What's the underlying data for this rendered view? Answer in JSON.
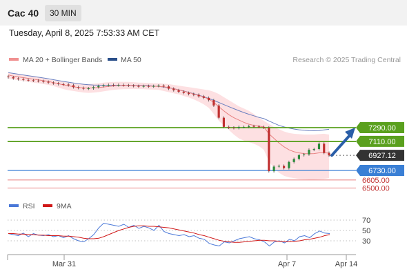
{
  "header": {
    "title": "Cac 40",
    "timeframe": "30 MIN",
    "timestamp": "Tuesday, April 8, 2025 7:53:33 AM CET"
  },
  "legend": {
    "ma20_label": "MA 20 + Bollinger Bands",
    "ma50_label": "MA 50",
    "credit": "Research © 2025 Trading Central",
    "rsi_label": "RSI",
    "rsi_ma_label": "9MA"
  },
  "colors": {
    "support_resistance": "#5aa01e",
    "last_price": "#333333",
    "pivot": "#3a7fd5",
    "target": "#e05050",
    "ma20": "#e88080",
    "ma50": "#6a7fc0",
    "bollinger_fill": "#fde0e2",
    "rsi": "#4a78d8",
    "rsi_ma": "#d01818",
    "arrow": "#2a5ea8"
  },
  "chart_data": [
    {
      "type": "line",
      "subtype": "candlestick",
      "price_levels": [
        {
          "value": 7290.0,
          "label": "7290.00",
          "kind": "resistance"
        },
        {
          "value": 7110.0,
          "label": "7110.00",
          "kind": "resistance"
        },
        {
          "value": 6927.12,
          "label": "6927.12",
          "kind": "last"
        },
        {
          "value": 6730.0,
          "label": "6730.00",
          "kind": "pivot"
        },
        {
          "value": 6605.0,
          "label": "6605.00",
          "kind": "target"
        },
        {
          "value": 6500.0,
          "label": "6500.00",
          "kind": "target"
        }
      ],
      "x_ticks": [
        "Mar 31",
        "Apr 7",
        "Apr 14"
      ],
      "close": [
        7950,
        7935,
        7925,
        7915,
        7910,
        7905,
        7900,
        7890,
        7880,
        7870,
        7860,
        7855,
        7845,
        7820,
        7810,
        7800,
        7805,
        7820,
        7835,
        7845,
        7850,
        7845,
        7850,
        7845,
        7840,
        7835,
        7830,
        7835,
        7830,
        7835,
        7840,
        7830,
        7800,
        7780,
        7760,
        7745,
        7730,
        7720,
        7700,
        7680,
        7650,
        7580,
        7420,
        7300,
        7290,
        7285,
        7300,
        7300,
        7310,
        7305,
        7300,
        7290,
        6720,
        6780,
        6790,
        6760,
        6840,
        6880,
        6930,
        6940,
        7000,
        7010,
        7080,
        6960,
        6927
      ],
      "ma20": [
        7980,
        7965,
        7955,
        7945,
        7935,
        7925,
        7915,
        7905,
        7895,
        7880,
        7865,
        7850,
        7840,
        7825,
        7815,
        7810,
        7808,
        7810,
        7815,
        7822,
        7830,
        7836,
        7840,
        7842,
        7843,
        7842,
        7840,
        7838,
        7835,
        7832,
        7830,
        7825,
        7815,
        7800,
        7785,
        7768,
        7750,
        7732,
        7712,
        7690,
        7665,
        7620,
        7565,
        7510,
        7460,
        7420,
        7390,
        7360,
        7335,
        7320,
        7310,
        7300,
        7210,
        7150,
        7090,
        7040,
        7000,
        6975,
        6960,
        6950,
        6948,
        6950,
        6960,
        6960,
        6958
      ],
      "ma50": [
        8010,
        8000,
        7990,
        7980,
        7970,
        7960,
        7950,
        7940,
        7930,
        7918,
        7906,
        7895,
        7885,
        7875,
        7865,
        7858,
        7852,
        7848,
        7846,
        7845,
        7845,
        7845,
        7845,
        7845,
        7845,
        7844,
        7843,
        7842,
        7840,
        7835,
        7830,
        7822,
        7812,
        7800,
        7785,
        7770,
        7752,
        7735,
        7715,
        7695,
        7672,
        7648,
        7620,
        7592,
        7565,
        7538,
        7512,
        7488,
        7465,
        7445,
        7425,
        7408,
        7378,
        7348,
        7320,
        7300,
        7285,
        7272,
        7262,
        7256,
        7252,
        7250,
        7252,
        7260,
        7268
      ],
      "bb_upper": [
        8010,
        8000,
        7990,
        7980,
        7970,
        7960,
        7950,
        7935,
        7920,
        7910,
        7900,
        7890,
        7880,
        7870,
        7860,
        7858,
        7860,
        7865,
        7872,
        7880,
        7885,
        7888,
        7890,
        7890,
        7888,
        7885,
        7880,
        7878,
        7875,
        7872,
        7870,
        7865,
        7860,
        7850,
        7840,
        7830,
        7820,
        7810,
        7800,
        7790,
        7780,
        7760,
        7730,
        7690,
        7650,
        7610,
        7570,
        7540,
        7510,
        7470,
        7420,
        7380,
        7340,
        7300,
        7270,
        7240,
        7220,
        7210,
        7205,
        7200,
        7200,
        7200,
        7205,
        7210,
        7200
      ],
      "bb_lower": [
        7930,
        7920,
        7910,
        7900,
        7890,
        7880,
        7870,
        7860,
        7850,
        7835,
        7815,
        7795,
        7780,
        7770,
        7760,
        7750,
        7745,
        7748,
        7755,
        7765,
        7775,
        7785,
        7790,
        7793,
        7795,
        7795,
        7795,
        7793,
        7790,
        7788,
        7785,
        7770,
        7755,
        7740,
        7725,
        7705,
        7685,
        7660,
        7630,
        7595,
        7550,
        7470,
        7380,
        7320,
        7260,
        7200,
        7150,
        7120,
        7100,
        7080,
        7050,
        7000,
        6850,
        6760,
        6700,
        6660,
        6640,
        6630,
        6620,
        6615,
        6612,
        6612,
        6615,
        6620,
        6630
      ],
      "projection": {
        "from": 6927.12,
        "to": 7290.0
      }
    },
    {
      "type": "line",
      "title": "RSI",
      "y_ticks": [
        70,
        50,
        30
      ],
      "series": [
        {
          "name": "RSI",
          "values": [
            44,
            42,
            40,
            45,
            38,
            44,
            41,
            40,
            42,
            38,
            40,
            36,
            40,
            34,
            30,
            28,
            34,
            42,
            55,
            64,
            62,
            60,
            58,
            62,
            56,
            60,
            54,
            58,
            55,
            50,
            60,
            48,
            44,
            42,
            40,
            42,
            38,
            40,
            35,
            33,
            25,
            22,
            20,
            28,
            26,
            30,
            34,
            36,
            38,
            34,
            32,
            28,
            20,
            28,
            30,
            26,
            33,
            30,
            38,
            40,
            36,
            44,
            49,
            45,
            44
          ]
        },
        {
          "name": "9MA",
          "values": [
            44,
            44,
            43,
            43,
            42,
            42,
            41,
            41,
            40,
            40,
            40,
            39,
            39,
            38,
            37,
            35,
            34,
            34,
            35,
            38,
            42,
            46,
            50,
            53,
            56,
            58,
            59,
            59,
            58,
            58,
            57,
            56,
            55,
            53,
            51,
            49,
            47,
            45,
            42,
            40,
            37,
            34,
            31,
            29,
            28,
            27,
            27,
            28,
            29,
            30,
            31,
            31,
            30,
            30,
            29,
            28,
            28,
            29,
            30,
            32,
            33,
            35,
            37,
            40,
            42
          ]
        }
      ]
    }
  ]
}
